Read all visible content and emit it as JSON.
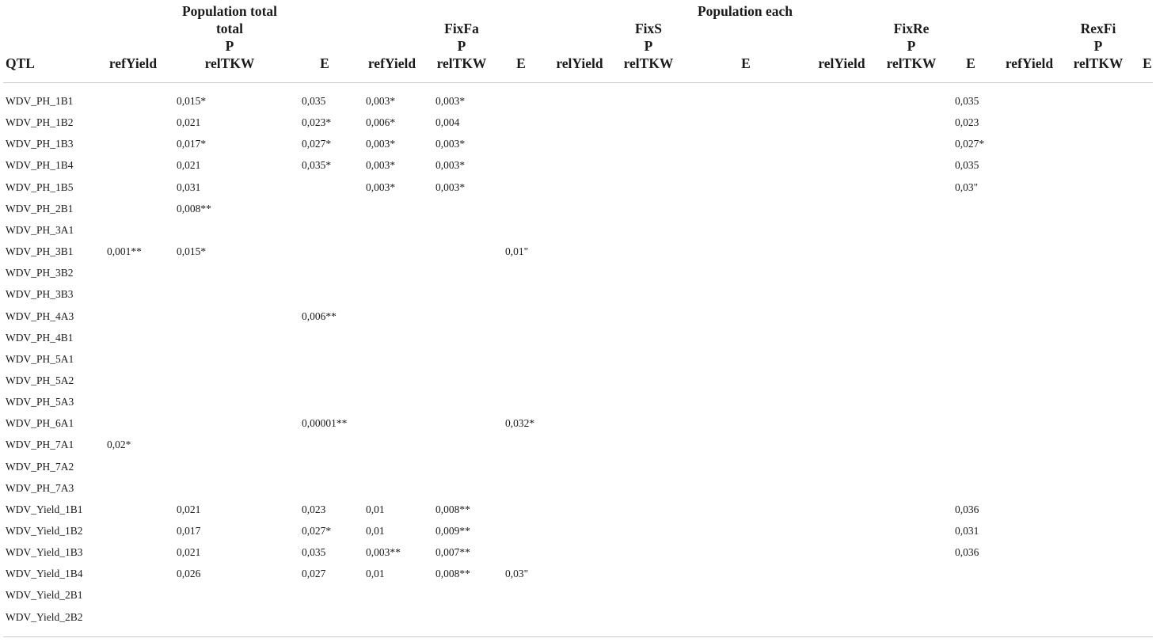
{
  "header": {
    "row1": {
      "population_total": "Population total",
      "population_each": "Population each"
    },
    "row2": {
      "total": "total",
      "fixfa": "FixFa",
      "fixs": "FixS",
      "fixre": "FixRe",
      "rexfi": "RexFi"
    },
    "row3": {
      "p_total": "P",
      "p_fixfa": "P",
      "p_fixs": "P",
      "p_fixre": "P",
      "p_rexfi": "P"
    },
    "columns": [
      "QTL",
      "refYield",
      "relTKW",
      "E",
      "refYield",
      "relTKW",
      "E",
      "relYield",
      "relTKW",
      "E",
      "relYield",
      "relTKW",
      "E",
      "refYield",
      "relTKW",
      "E"
    ]
  },
  "rows": [
    {
      "qtl": "WDV_PH_1B1",
      "c1": "",
      "c2": "0,015*",
      "c3": "0,035",
      "c4": "0,003*",
      "c5": "0,003*",
      "c6": "",
      "c12": "0,035"
    },
    {
      "qtl": "WDV_PH_1B2",
      "c1": "",
      "c2": "0,021",
      "c3": "0,023*",
      "c4": "0,006*",
      "c5": "0,004",
      "c6": "",
      "c12": "0,023"
    },
    {
      "qtl": "WDV_PH_1B3",
      "c1": "",
      "c2": "0,017*",
      "c3": "0,027*",
      "c4": "0,003*",
      "c5": "0,003*",
      "c6": "",
      "c12": "0,027*"
    },
    {
      "qtl": "WDV_PH_1B4",
      "c1": "",
      "c2": "0,021",
      "c3": "0,035*",
      "c4": "0,003*",
      "c5": "0,003*",
      "c6": "",
      "c12": "0,035"
    },
    {
      "qtl": "WDV_PH_1B5",
      "c1": "",
      "c2": "0,031",
      "c3": "",
      "c4": "0,003*",
      "c5": "0,003*",
      "c6": "",
      "c12": "0,03\""
    },
    {
      "qtl": "WDV_PH_2B1",
      "c1": "",
      "c2": "0,008**",
      "c3": "",
      "c4": "",
      "c5": "",
      "c6": "",
      "c12": ""
    },
    {
      "qtl": "WDV_PH_3A1",
      "c1": "",
      "c2": "",
      "c3": "",
      "c4": "",
      "c5": "",
      "c6": "",
      "c12": ""
    },
    {
      "qtl": "WDV_PH_3B1",
      "c1": "0,001**",
      "c2": "0,015*",
      "c3": "",
      "c4": "",
      "c5": "",
      "c6": "0,01\"",
      "c12": ""
    },
    {
      "qtl": "WDV_PH_3B2",
      "c1": "",
      "c2": "",
      "c3": "",
      "c4": "",
      "c5": "",
      "c6": "",
      "c12": ""
    },
    {
      "qtl": "WDV_PH_3B3",
      "c1": "",
      "c2": "",
      "c3": "",
      "c4": "",
      "c5": "",
      "c6": "",
      "c12": ""
    },
    {
      "qtl": "WDV_PH_4A3",
      "c1": "",
      "c2": "",
      "c3": "0,006**",
      "c4": "",
      "c5": "",
      "c6": "",
      "c12": ""
    },
    {
      "qtl": "WDV_PH_4B1",
      "c1": "",
      "c2": "",
      "c3": "",
      "c4": "",
      "c5": "",
      "c6": "",
      "c12": ""
    },
    {
      "qtl": "WDV_PH_5A1",
      "c1": "",
      "c2": "",
      "c3": "",
      "c4": "",
      "c5": "",
      "c6": "",
      "c12": ""
    },
    {
      "qtl": "WDV_PH_5A2",
      "c1": "",
      "c2": "",
      "c3": "",
      "c4": "",
      "c5": "",
      "c6": "",
      "c12": ""
    },
    {
      "qtl": "WDV_PH_5A3",
      "c1": "",
      "c2": "",
      "c3": "",
      "c4": "",
      "c5": "",
      "c6": "",
      "c12": ""
    },
    {
      "qtl": "WDV_PH_6A1",
      "c1": "",
      "c2": "",
      "c3": "0,00001**",
      "c4": "",
      "c5": "",
      "c6": "0,032*",
      "c12": ""
    },
    {
      "qtl": "WDV_PH_7A1",
      "c1": "0,02*",
      "c2": "",
      "c3": "",
      "c4": "",
      "c5": "",
      "c6": "",
      "c12": ""
    },
    {
      "qtl": "WDV_PH_7A2",
      "c1": "",
      "c2": "",
      "c3": "",
      "c4": "",
      "c5": "",
      "c6": "",
      "c12": ""
    },
    {
      "qtl": "WDV_PH_7A3",
      "c1": "",
      "c2": "",
      "c3": "",
      "c4": "",
      "c5": "",
      "c6": "",
      "c12": ""
    },
    {
      "qtl": "WDV_Yield_1B1",
      "c1": "",
      "c2": "0,021",
      "c3": "0,023",
      "c4": "0,01",
      "c5": "0,008**",
      "c6": "",
      "c12": "0,036"
    },
    {
      "qtl": "WDV_Yield_1B2",
      "c1": "",
      "c2": "0,017",
      "c3": "0,027*",
      "c4": "0,01",
      "c5": "0,009**",
      "c6": "",
      "c12": "0,031"
    },
    {
      "qtl": "WDV_Yield_1B3",
      "c1": "",
      "c2": "0,021",
      "c3": "0,035",
      "c4": "0,003**",
      "c5": "0,007**",
      "c6": "",
      "c12": "0,036"
    },
    {
      "qtl": "WDV_Yield_1B4",
      "c1": "",
      "c2": "0,026",
      "c3": "0,027",
      "c4": "0,01",
      "c5": "0,008**",
      "c6": "0,03\"",
      "c12": ""
    },
    {
      "qtl": "WDV_Yield_2B1",
      "c1": "",
      "c2": "",
      "c3": "",
      "c4": "",
      "c5": "",
      "c6": "",
      "c12": ""
    },
    {
      "qtl": "WDV_Yield_2B2",
      "c1": "",
      "c2": "",
      "c3": "",
      "c4": "",
      "c5": "",
      "c6": "",
      "c12": ""
    }
  ]
}
